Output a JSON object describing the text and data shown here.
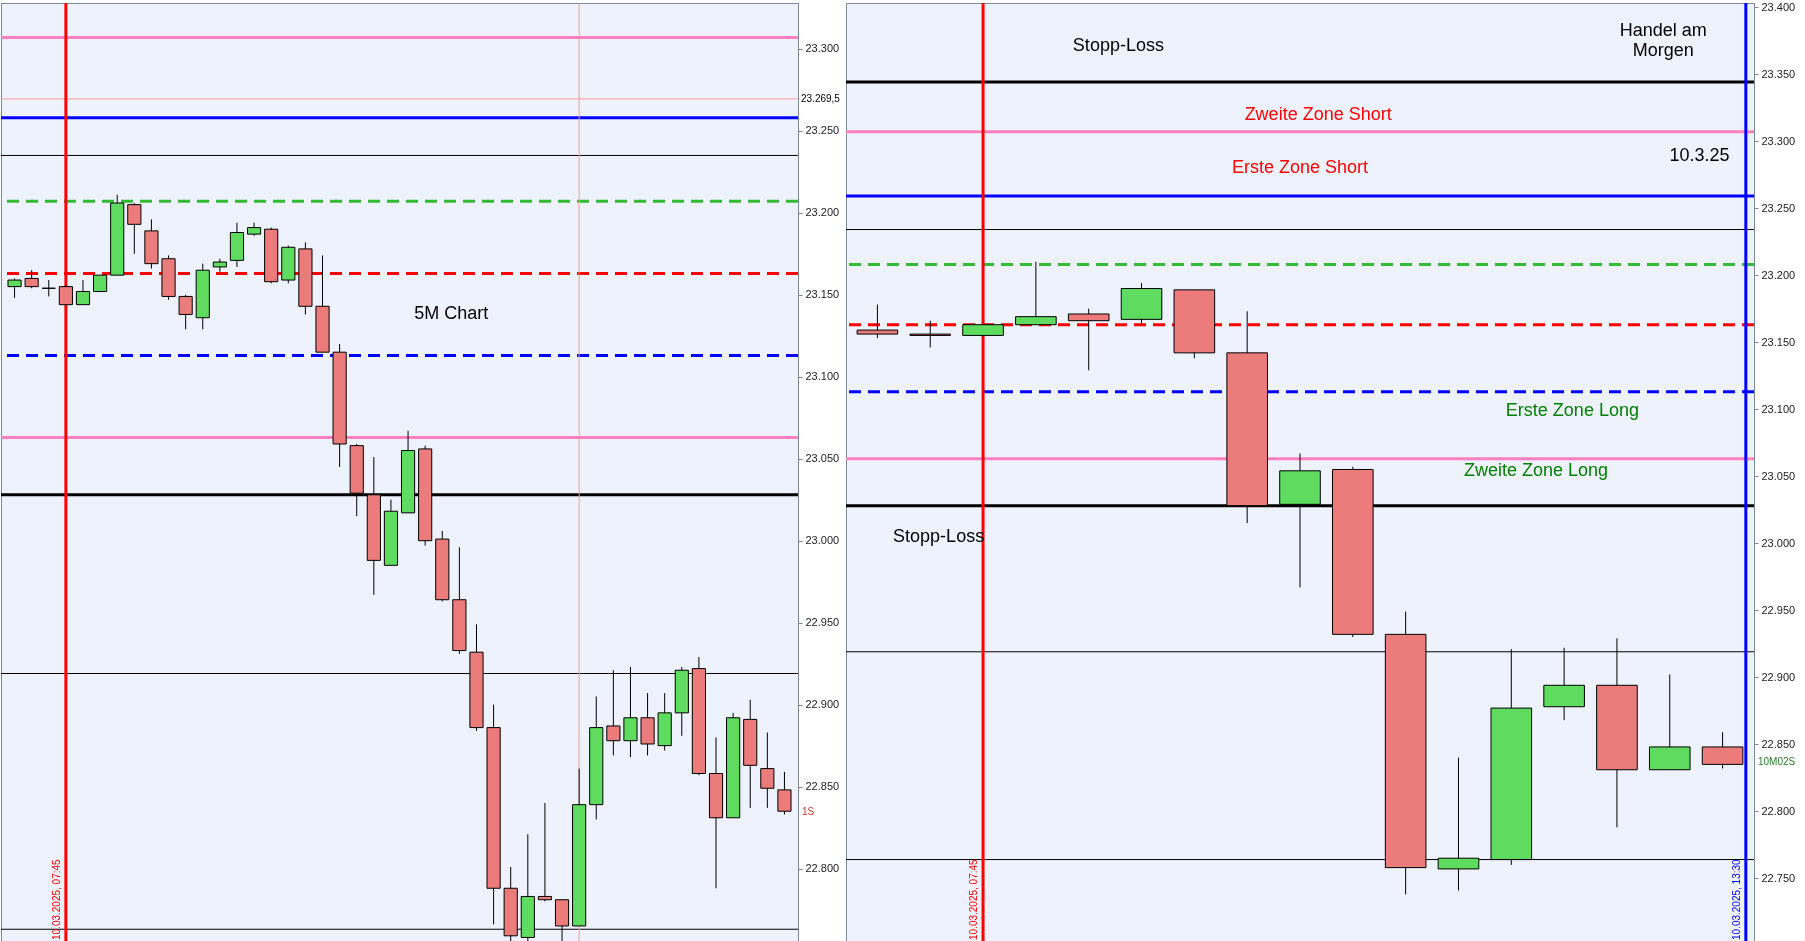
{
  "chart_data": [
    {
      "type": "candlestick",
      "tick_labels": "y",
      "categories": [
        null,
        null,
        null,
        null,
        null,
        null,
        null,
        null,
        null,
        null,
        null,
        null,
        null,
        null,
        null,
        null,
        null,
        null,
        null,
        null,
        null,
        null,
        null,
        null,
        null,
        null,
        null,
        null,
        null,
        null,
        null,
        null,
        null,
        null,
        null,
        null,
        null,
        null,
        null,
        null,
        null,
        null,
        null,
        null,
        null,
        null
      ],
      "ohlc": [
        [
          23155,
          23160,
          23148,
          23159
        ],
        [
          23160,
          23165,
          23154,
          23155
        ],
        [
          23154,
          23159,
          23149,
          23154
        ],
        [
          23155,
          23156,
          23144,
          23144
        ],
        [
          23144,
          23159,
          23144,
          23152
        ],
        [
          23152,
          23162,
          23152,
          23162
        ],
        [
          23162,
          23211,
          23162,
          23206
        ],
        [
          23205,
          23206,
          23175,
          23193
        ],
        [
          23189,
          23196,
          23166,
          23169
        ],
        [
          23172,
          23174,
          23147,
          23149
        ],
        [
          23149,
          23150,
          23129,
          23138
        ],
        [
          23136,
          23169,
          23129,
          23165
        ],
        [
          23167,
          23172,
          23164,
          23170
        ],
        [
          23171,
          23194,
          23167,
          23188
        ],
        [
          23187,
          23194,
          23186,
          23191
        ],
        [
          23190,
          23191,
          23157,
          23158
        ],
        [
          23159,
          23180,
          23157,
          23179
        ],
        [
          23178,
          23182,
          23138,
          23143
        ],
        [
          23143,
          23174,
          23115,
          23115
        ],
        [
          23115,
          23120,
          23045,
          23059
        ],
        [
          23058,
          23059,
          23015,
          23029
        ],
        [
          23028,
          23051,
          22967,
          22988
        ],
        [
          22985,
          23025,
          22985,
          23018
        ],
        [
          23017,
          23067,
          23017,
          23055
        ],
        [
          23056,
          23058,
          22997,
          23000
        ],
        [
          23001,
          23006,
          22963,
          22964
        ],
        [
          22964,
          22996,
          22931,
          22933
        ],
        [
          22932,
          22949,
          22884,
          22886
        ],
        [
          22886,
          22900,
          22766,
          22788
        ],
        [
          22788,
          22801,
          22755,
          22759
        ],
        [
          22758,
          22821,
          22755,
          22783
        ],
        [
          22783,
          22840,
          22780,
          22781
        ],
        [
          22781,
          22781,
          22755,
          22765
        ],
        [
          22765,
          22861,
          22765,
          22839
        ],
        [
          22839,
          22905,
          22830,
          22886
        ],
        [
          22887,
          22921,
          22869,
          22878
        ],
        [
          22878,
          22923,
          22868,
          22892
        ],
        [
          22892,
          22907,
          22869,
          22876
        ],
        [
          22875,
          22907,
          22872,
          22895
        ],
        [
          22895,
          22923,
          22881,
          22921
        ],
        [
          22922,
          22929,
          22857,
          22858
        ],
        [
          22858,
          22880,
          22788,
          22831
        ],
        [
          22831,
          22895,
          22831,
          22892
        ],
        [
          22891,
          22903,
          22837,
          22863
        ],
        [
          22861,
          22883,
          22837,
          22849
        ],
        [
          22848,
          22859,
          22833,
          22835
        ]
      ],
      "ylim": [
        22754,
        23328
      ],
      "yticks": [
        {
          "value": 22800,
          "label": "22.800"
        },
        {
          "value": 22850,
          "label": "22.850"
        },
        {
          "value": 22900,
          "label": "22.900"
        },
        {
          "value": 22950,
          "label": "22.950"
        },
        {
          "value": 23000,
          "label": "23.000"
        },
        {
          "value": 23050,
          "label": "23.050"
        },
        {
          "value": 23100,
          "label": "23.100"
        },
        {
          "value": 23150,
          "label": "23.150"
        },
        {
          "value": 23200,
          "label": "23.200"
        },
        {
          "value": 23250,
          "label": "23.250"
        },
        {
          "value": 23300,
          "label": "23.300"
        }
      ],
      "ref_lines": [
        {
          "axis": "y",
          "value": 23307,
          "label": null,
          "color": "#ff80c0",
          "line_style": "solid"
        },
        {
          "axis": "y",
          "value": 23258,
          "label": null,
          "color": "#0000ff",
          "line_style": "solid"
        },
        {
          "axis": "y",
          "value": 23207,
          "label": null,
          "color": "#33bb33",
          "line_style": "dashed"
        },
        {
          "axis": "y",
          "value": 23163,
          "label": null,
          "color": "#ff0000",
          "line_style": "dashed"
        },
        {
          "axis": "y",
          "value": 23113,
          "label": null,
          "color": "#0000ff",
          "line_style": "dashed"
        },
        {
          "axis": "y",
          "value": 23063,
          "label": null,
          "color": "#ff80c0",
          "line_style": "solid"
        },
        {
          "axis": "y",
          "value": 23028,
          "label": null,
          "color": "#000000",
          "line_style": "solid"
        },
        {
          "axis": "y",
          "value": 23235,
          "label": null,
          "color": "#000000"
        },
        {
          "axis": "y",
          "value": 22919,
          "label": null,
          "color": "#000000"
        },
        {
          "axis": "y",
          "value": 22763,
          "label": null,
          "color": "#000000"
        },
        {
          "axis": "y",
          "value": 23269.5,
          "label": "23.269,5",
          "color": "#ff9999"
        }
      ],
      "annotations": [
        "5M Chart",
        "1S",
        "10.03.2025, 07:45"
      ]
    },
    {
      "type": "candlestick",
      "tick_labels": "y",
      "categories": [
        null,
        null,
        null,
        null,
        null,
        null,
        null,
        null,
        null,
        null,
        null,
        null,
        null,
        null,
        null,
        null,
        null
      ],
      "ohlc": [
        [
          23159,
          23178,
          23153,
          23156
        ],
        [
          23156,
          23166,
          23146,
          23155
        ],
        [
          23155,
          23163,
          23154,
          23163
        ],
        [
          23163,
          23210,
          23163,
          23169
        ],
        [
          23171,
          23175,
          23129,
          23166
        ],
        [
          23167,
          23194,
          23164,
          23190
        ],
        [
          23189,
          23189,
          23138,
          23142
        ],
        [
          23142,
          23173,
          23015,
          23028
        ],
        [
          23029,
          23067,
          22967,
          23054
        ],
        [
          23055,
          23057,
          22930,
          22932
        ],
        [
          22932,
          22949,
          22738,
          22758
        ],
        [
          22757,
          22840,
          22741,
          22765
        ],
        [
          22764,
          22921,
          22760,
          22877
        ],
        [
          22878,
          22922,
          22868,
          22894
        ],
        [
          22894,
          22929,
          22788,
          22831
        ],
        [
          22831,
          22902,
          22831,
          22848
        ],
        [
          22848,
          22859,
          22832,
          22835
        ]
      ],
      "ylim": [
        22701,
        23403
      ],
      "yticks": [
        {
          "value": 22750,
          "label": "22.750"
        },
        {
          "value": 22800,
          "label": "22.800"
        },
        {
          "value": 22850,
          "label": "22.850"
        },
        {
          "value": 22900,
          "label": "22.900"
        },
        {
          "value": 22950,
          "label": "22.950"
        },
        {
          "value": 23000,
          "label": "23.000"
        },
        {
          "value": 23050,
          "label": "23.050"
        },
        {
          "value": 23100,
          "label": "23.100"
        },
        {
          "value": 23150,
          "label": "23.150"
        },
        {
          "value": 23200,
          "label": "23.200"
        },
        {
          "value": 23250,
          "label": "23.250"
        },
        {
          "value": 23300,
          "label": "23.300"
        },
        {
          "value": 23350,
          "label": "23.350"
        },
        {
          "value": 23400,
          "label": "23.400"
        }
      ],
      "ref_lines": [
        {
          "axis": "y",
          "value": 23344,
          "label": null,
          "color": "#000000",
          "line_style": "solid"
        },
        {
          "axis": "y",
          "value": 23307,
          "label": null,
          "color": "#ff80c0",
          "line_style": "solid"
        },
        {
          "axis": "y",
          "value": 23259,
          "label": null,
          "color": "#0000ff",
          "line_style": "solid"
        },
        {
          "axis": "y",
          "value": 23208,
          "label": null,
          "color": "#33bb33",
          "line_style": "dashed"
        },
        {
          "axis": "y",
          "value": 23163,
          "label": null,
          "color": "#ff0000",
          "line_style": "dashed"
        },
        {
          "axis": "y",
          "value": 23113,
          "label": null,
          "color": "#0000ff",
          "line_style": "dashed"
        },
        {
          "axis": "y",
          "value": 23063,
          "label": null,
          "color": "#ff80c0",
          "line_style": "solid"
        },
        {
          "axis": "y",
          "value": 23028,
          "label": null,
          "color": "#000000",
          "line_style": "solid"
        },
        {
          "axis": "y",
          "value": 23234,
          "label": null,
          "color": "#000000"
        },
        {
          "axis": "y",
          "value": 22919,
          "label": null,
          "color": "#000000"
        },
        {
          "axis": "y",
          "value": 22764,
          "label": null,
          "color": "#000000"
        }
      ],
      "annotations": [
        "Stopp-Loss",
        "Handel am\nMorgen",
        "Zweite Zone Short",
        "Erste Zone Short",
        "10.3.25",
        "Erste Zone Long",
        "Zweite  Zone Long",
        "Stopp-Loss",
        "10M02S",
        "10.03.2025, 07:45",
        "10.03.2025, 13:30"
      ]
    }
  ]
}
